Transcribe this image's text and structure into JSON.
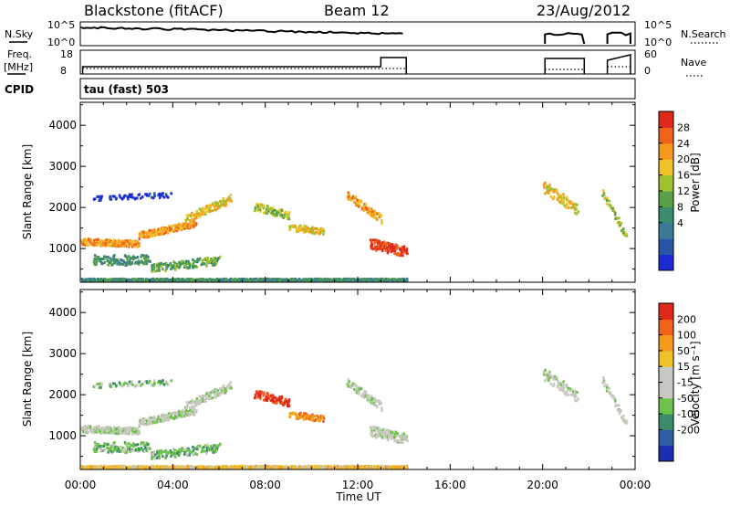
{
  "header": {
    "station": "Blackstone (fitACF)",
    "beam": "Beam 12",
    "date": "23/Aug/2012"
  },
  "status_panels": {
    "nsky_label": "N.Sky",
    "nsearch_label": "N.Search",
    "power_ticks": [
      "10^5",
      "10^0"
    ],
    "freq_label": [
      "Freq.",
      "[MHz]"
    ],
    "freq_ticks": [
      "18",
      "8"
    ],
    "nave_label": "Nave",
    "nave_ticks": [
      "60",
      "0"
    ],
    "cpid_label": "CPID",
    "cpid_value": "tau (fast) 503"
  },
  "chart_data": [
    {
      "type": "heatmap",
      "name": "power",
      "ylabel": "Slant Range [km]",
      "yticks": [
        "1000",
        "2000",
        "3000",
        "4000"
      ],
      "ylim": [
        180,
        4560
      ],
      "colorbar_label": "Power [dB]",
      "colorbar_ticks": [
        "28",
        "24",
        "20",
        "16",
        "12",
        "8",
        "4"
      ],
      "colors": [
        "#1c2bd6",
        "#2955a8",
        "#3b7a97",
        "#3a8c6c",
        "#5aa049",
        "#9cc131",
        "#f0c22a",
        "#f59a1d",
        "#f0621a",
        "#e0281b"
      ]
    },
    {
      "type": "heatmap",
      "name": "velocity",
      "ylabel": "Slant Range [km]",
      "yticks": [
        "1000",
        "2000",
        "3000",
        "4000"
      ],
      "ylim": [
        180,
        4560
      ],
      "colorbar_label": "Velocity [m s⁻¹]",
      "colorbar_ticks": [
        "200",
        "100",
        "50",
        "15",
        "-15",
        "-50",
        "-100",
        "-200"
      ],
      "colors": [
        "#1a2fae",
        "#2e5ea6",
        "#3b8c6c",
        "#6cc24a",
        "#c8c8c0",
        "#c8c8c0",
        "#f0c22a",
        "#f59a1d",
        "#f0621a",
        "#e0281b"
      ]
    }
  ],
  "xaxis": {
    "label": "Time UT",
    "ticks": [
      "00:00",
      "04:00",
      "08:00",
      "12:00",
      "16:00",
      "20:00",
      "00:00"
    ],
    "xlim": [
      0,
      24
    ]
  }
}
